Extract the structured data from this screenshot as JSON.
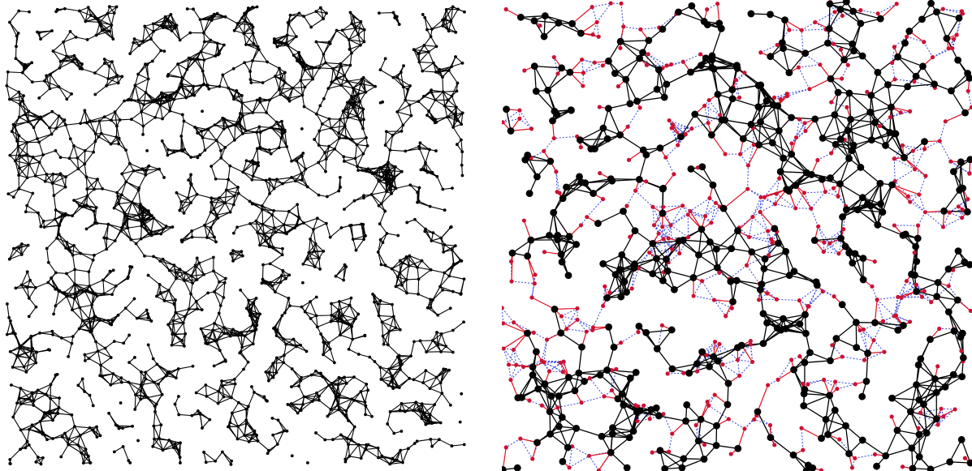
{
  "figure": {
    "panels": [
      {
        "id": "full-graph",
        "style": {
          "node_color": "#000000",
          "edge_color": "#000000"
        },
        "legend": []
      },
      {
        "id": "zoomed-graph",
        "style": {
          "primary_node_color": "#000000",
          "secondary_node_color": "#cc1133",
          "primary_edge_color": "#000000",
          "secondary_edge_color": "#dd1122",
          "dotted_edge_color": "#3344dd"
        },
        "legend": []
      }
    ]
  }
}
